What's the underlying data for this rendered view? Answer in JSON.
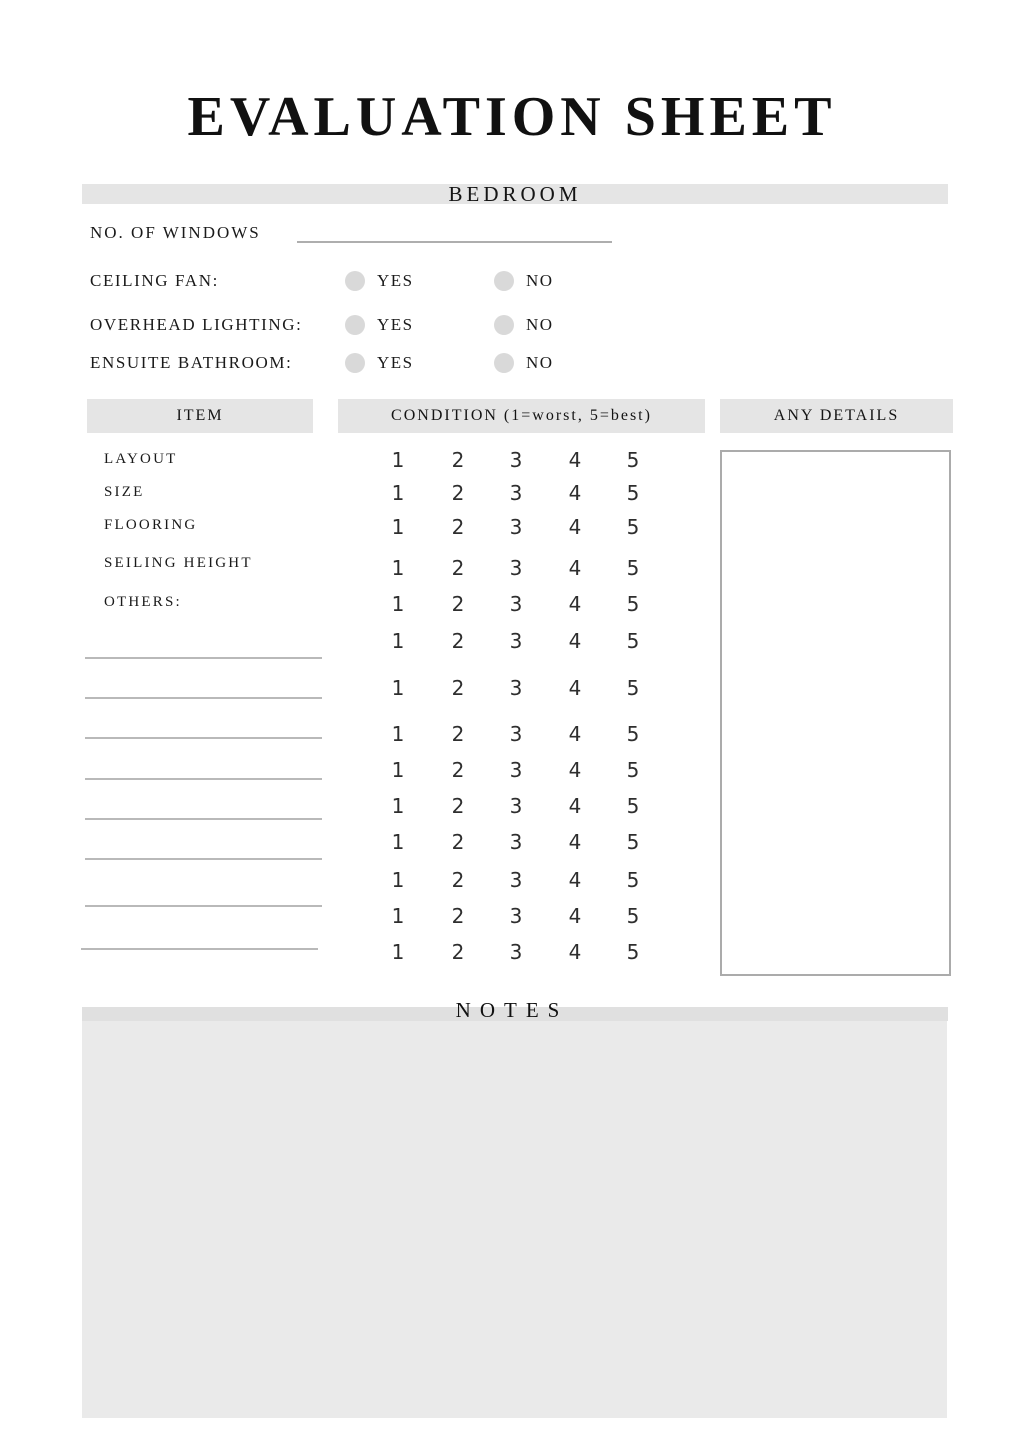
{
  "page": {
    "title": "EVALUATION SHEET"
  },
  "section": {
    "label": "BEDROOM"
  },
  "windows_field": {
    "label": "NO. OF WINDOWS",
    "value": ""
  },
  "questions": [
    {
      "label": "CEILING FAN:",
      "yes_label": "YES",
      "no_label": "NO"
    },
    {
      "label": "OVERHEAD LIGHTING:",
      "yes_label": "YES",
      "no_label": "NO"
    },
    {
      "label": "ENSUITE BATHROOM:",
      "yes_label": "YES",
      "no_label": "NO"
    }
  ],
  "table": {
    "headers": {
      "item": "ITEM",
      "condition": "CONDITION (1=worst, 5=best)",
      "details": "ANY DETAILS"
    },
    "items": [
      "LAYOUT",
      "SIZE",
      "FLOORING",
      "SEILING HEIGHT",
      "OTHERS:"
    ],
    "condition_scale": [
      "1",
      "2",
      "3",
      "4",
      "5"
    ],
    "condition_row_count": 14,
    "blank_line_count": 8,
    "details_value": ""
  },
  "notes": {
    "label": "NOTES",
    "value": ""
  },
  "colors": {
    "banner_gray": "#e5e5e5",
    "notes_strip_gray": "#e0e0e0",
    "notes_area_gray": "#eaeaea",
    "radio_circle_gray": "#d9d9d9",
    "line_gray": "#b9b9b9",
    "box_border_gray": "#ababab",
    "text_dark": "#1a1a1a"
  }
}
